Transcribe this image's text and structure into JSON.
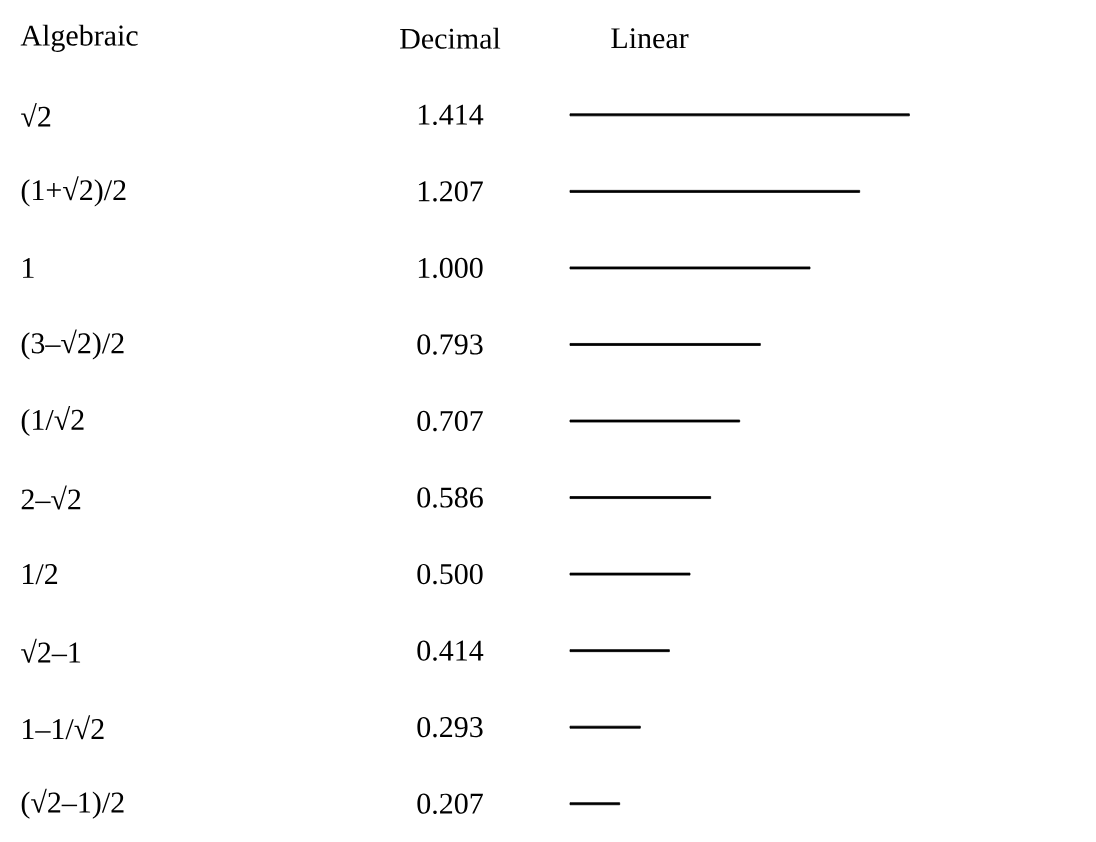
{
  "chart_data": {
    "type": "bar",
    "orientation": "horizontal",
    "categories": [
      "√2",
      "(1+√2)/2",
      "1",
      "(3–√2)/2",
      "(1/√2",
      "2–√2",
      "1/2",
      "√2–1",
      "1–1/√2",
      "(√2–1)/2"
    ],
    "values": [
      1.414,
      1.207,
      1.0,
      0.793,
      0.707,
      0.586,
      0.5,
      0.414,
      0.293,
      0.207
    ],
    "value_labels": [
      "1.414",
      "1.207",
      "1.000",
      "0.793",
      "0.707",
      "0.586",
      "0.500",
      "0.414",
      "0.293",
      "0.207"
    ],
    "color": "#000000",
    "annotations": [
      "Algebraic",
      "Decimal",
      "Linear"
    ]
  }
}
